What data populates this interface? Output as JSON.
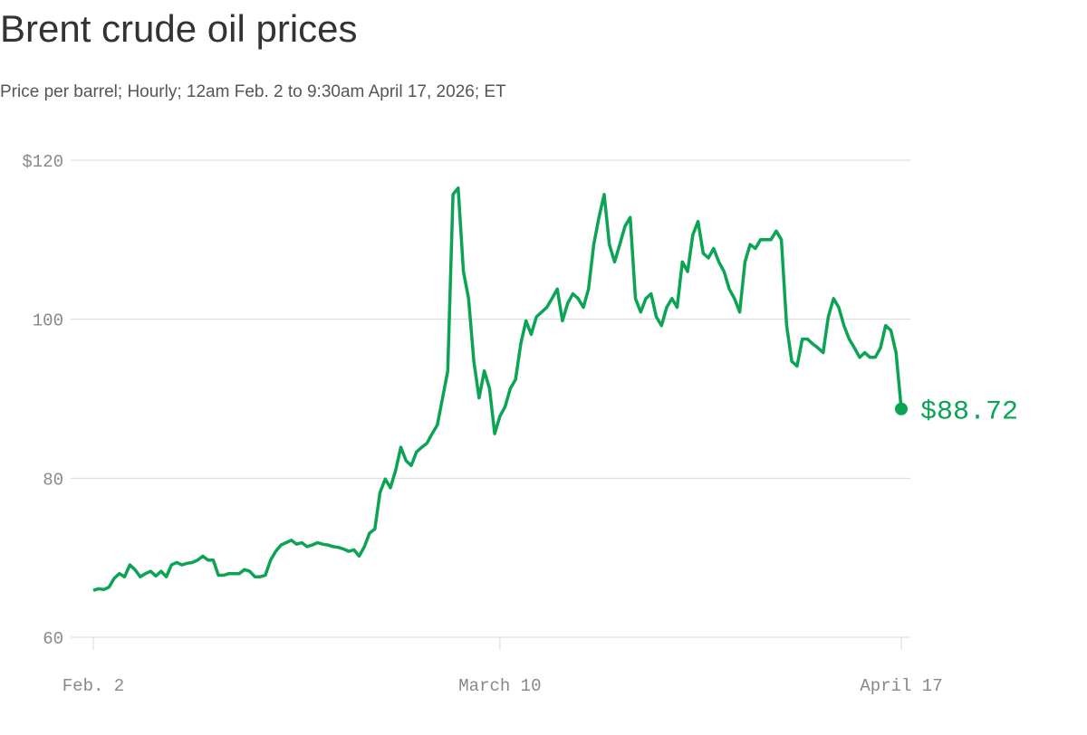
{
  "chart_data": {
    "type": "line",
    "title": "Brent crude oil prices",
    "subtitle": "Price per barrel; Hourly; 12am Feb. 2 to 9:30am April 17, 2026; ET",
    "color": "#0aa454",
    "grid": true,
    "ylim": [
      60,
      120
    ],
    "yticks": [
      {
        "value": 120,
        "label": "$120"
      },
      100,
      80,
      60
    ],
    "xlim": [
      0,
      155
    ],
    "xticks": [
      {
        "value": 0,
        "label": "Feb. 2"
      },
      {
        "value": 78,
        "label": "March 10"
      },
      {
        "value": 155,
        "label": "April 17"
      }
    ],
    "values": [
      65.9,
      66.1,
      66.0,
      66.3,
      67.4,
      68.0,
      67.6,
      69.1,
      68.5,
      67.6,
      68.0,
      68.3,
      67.7,
      68.3,
      67.6,
      69.1,
      69.4,
      69.1,
      69.3,
      69.4,
      69.7,
      70.2,
      69.7,
      69.7,
      67.8,
      67.8,
      68.0,
      68.0,
      68.0,
      68.5,
      68.3,
      67.6,
      67.6,
      67.8,
      69.7,
      70.8,
      71.6,
      71.9,
      72.2,
      71.7,
      71.9,
      71.4,
      71.6,
      71.9,
      71.7,
      71.6,
      71.4,
      71.3,
      71.1,
      70.8,
      71.0,
      70.2,
      71.4,
      73.1,
      73.6,
      78.2,
      79.9,
      78.8,
      81.0,
      83.9,
      82.2,
      81.6,
      83.3,
      83.9,
      84.4,
      85.6,
      86.7,
      90.1,
      93.5,
      115.7,
      116.5,
      106.0,
      102.6,
      94.7,
      90.1,
      93.5,
      91.3,
      85.6,
      87.8,
      89.0,
      91.3,
      92.4,
      96.9,
      99.8,
      98.1,
      100.3,
      100.9,
      101.5,
      102.6,
      103.8,
      99.8,
      102.0,
      103.2,
      102.6,
      101.5,
      103.8,
      109.4,
      112.8,
      115.7,
      109.4,
      107.2,
      109.4,
      111.7,
      112.8,
      102.6,
      100.9,
      102.6,
      103.2,
      100.3,
      99.2,
      101.5,
      102.6,
      101.5,
      107.2,
      106.0,
      110.6,
      112.3,
      108.3,
      107.7,
      108.9,
      107.2,
      106.0,
      103.8,
      102.6,
      100.9,
      107.2,
      109.4,
      108.9,
      110.0,
      110.0,
      110.0,
      111.1,
      110.0,
      99.2,
      94.7,
      94.1,
      97.5,
      97.5,
      96.9,
      96.4,
      95.8,
      100.3,
      102.6,
      101.5,
      99.2,
      97.5,
      96.4,
      95.2,
      95.8,
      95.2,
      95.2,
      96.4,
      99.2,
      98.6,
      95.8,
      88.72
    ],
    "last_value_label": "$88.72"
  }
}
